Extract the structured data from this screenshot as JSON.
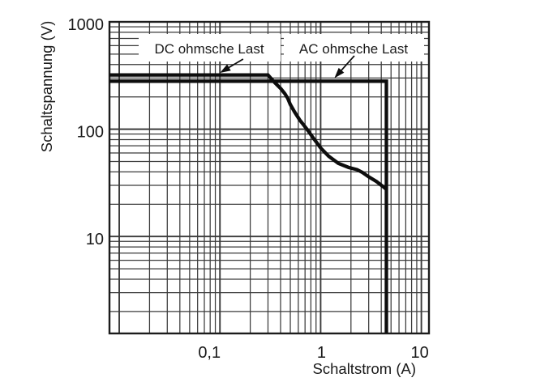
{
  "chart_data": {
    "type": "line",
    "title": "",
    "xlabel": "Schaltstrom (A)",
    "ylabel": "Schaltspannung (V)",
    "x_scale": "log",
    "y_scale": "log",
    "xlim": [
      0.008,
      11.9
    ],
    "ylim": [
      1.25,
      1000
    ],
    "grid": "full log grid (major + minor), boxed frame",
    "legend_position": "none (inline labels with arrows)",
    "x_ticks": [
      {
        "value": 0.1,
        "label": "0,1",
        "dx": -13
      },
      {
        "value": 1,
        "label": "1",
        "dx": 1
      },
      {
        "value": 10,
        "label": "10",
        "dx": -2
      }
    ],
    "y_ticks": [
      {
        "value": 10,
        "label": "10"
      },
      {
        "value": 100,
        "label": "100"
      },
      {
        "value": 1000,
        "label": "1000"
      }
    ],
    "series": [
      {
        "name": "DC ohmsche Last",
        "points": [
          [
            0.008,
            320
          ],
          [
            0.3,
            320
          ],
          [
            0.35,
            272
          ],
          [
            0.4,
            240
          ],
          [
            0.44,
            215
          ],
          [
            0.47,
            195
          ],
          [
            0.5,
            170
          ],
          [
            0.55,
            145
          ],
          [
            0.62,
            122
          ],
          [
            0.72,
            102
          ],
          [
            0.85,
            82
          ],
          [
            1.0,
            67
          ],
          [
            1.2,
            56
          ],
          [
            1.5,
            48
          ],
          [
            1.9,
            44
          ],
          [
            2.3,
            42
          ],
          [
            2.6,
            39.5
          ],
          [
            3.0,
            36
          ],
          [
            3.6,
            32.5
          ],
          [
            4.2,
            29
          ],
          [
            4.5,
            27.5
          ]
        ]
      },
      {
        "name": "AC ohmsche Last",
        "points": [
          [
            0.008,
            280
          ],
          [
            4.5,
            280
          ],
          [
            4.5,
            1.26
          ]
        ]
      }
    ],
    "annotations": [
      {
        "text": "DC ohmsche Last",
        "arrow_from": [
          0.17,
          450
        ],
        "arrow_to": [
          0.1,
          335
        ]
      },
      {
        "text": "AC ohmsche Last",
        "arrow_from": [
          2.16,
          483
        ],
        "arrow_to": [
          1.37,
          299
        ]
      }
    ],
    "colors": {
      "curve": "#0d0d0d",
      "grid": "#3a3a3a",
      "frame": "#1c1c1c",
      "text": "#1a1a1a",
      "background": "#ffffff"
    }
  }
}
